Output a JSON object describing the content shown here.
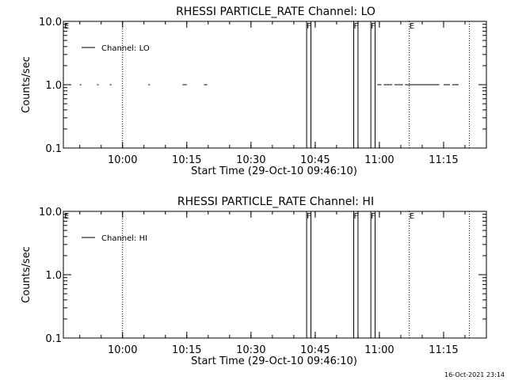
{
  "footer": {
    "timestamp": "16-Oct-2021 23:14"
  },
  "chart_data": [
    {
      "type": "line",
      "title": "RHESSI PARTICLE_RATE Channel: LO",
      "xlabel": "Start Time (29-Oct-10 09:46:10)",
      "ylabel": "Counts/sec",
      "y_scale": "log",
      "ylim": [
        0.1,
        10.0
      ],
      "xlim": [
        "09:46:10",
        "11:25:00"
      ],
      "x_ticks": [
        "10:00",
        "10:15",
        "10:30",
        "10:45",
        "11:00",
        "11:15"
      ],
      "y_ticks": [
        "0.1",
        "1.0",
        "10.0"
      ],
      "legend": {
        "position": "top-left",
        "entries": [
          "Channel: LO"
        ]
      },
      "flags": [
        {
          "label": "E",
          "time": "09:46:10",
          "style": "marker"
        },
        {
          "label": "",
          "time": "10:00",
          "style": "dotted"
        },
        {
          "label": "F",
          "time": "10:43",
          "style": "solid"
        },
        {
          "label": "F",
          "time": "10:54",
          "style": "solid"
        },
        {
          "label": "F",
          "time": "10:58",
          "style": "solid"
        },
        {
          "label": "E",
          "time": "11:07",
          "style": "dotted"
        },
        {
          "label": "",
          "time": "11:21",
          "style": "dotted"
        }
      ],
      "solid_lines": [
        "10:44",
        "10:55",
        "10:59"
      ],
      "series": [
        {
          "name": "Channel: LO",
          "segments": [
            {
              "start": "09:50",
              "end": "09:50.3",
              "value": 1.0
            },
            {
              "start": "09:54",
              "end": "09:54.4",
              "value": 1.0
            },
            {
              "start": "09:57",
              "end": "09:57.4",
              "value": 1.0
            },
            {
              "start": "10:06",
              "end": "10:06.4",
              "value": 1.0
            },
            {
              "start": "10:14",
              "end": "10:15",
              "value": 1.0
            },
            {
              "start": "10:19",
              "end": "10:19.8",
              "value": 1.0
            },
            {
              "start": "10:59.5",
              "end": "11:00.5",
              "value": 1.0
            },
            {
              "start": "11:01",
              "end": "11:03",
              "value": 1.0
            },
            {
              "start": "11:03.5",
              "end": "11:05.5",
              "value": 1.0
            },
            {
              "start": "11:06",
              "end": "11:14",
              "value": 1.0
            },
            {
              "start": "11:15",
              "end": "11:16.5",
              "value": 1.0
            },
            {
              "start": "11:17",
              "end": "11:18.5",
              "value": 1.0
            }
          ]
        }
      ]
    },
    {
      "type": "line",
      "title": "RHESSI PARTICLE_RATE Channel: HI",
      "xlabel": "Start Time (29-Oct-10 09:46:10)",
      "ylabel": "Counts/sec",
      "y_scale": "log",
      "ylim": [
        0.1,
        10.0
      ],
      "xlim": [
        "09:46:10",
        "11:25:00"
      ],
      "x_ticks": [
        "10:00",
        "10:15",
        "10:30",
        "10:45",
        "11:00",
        "11:15"
      ],
      "y_ticks": [
        "0.1",
        "1.0",
        "10.0"
      ],
      "legend": {
        "position": "top-left",
        "entries": [
          "Channel: HI"
        ]
      },
      "flags": [
        {
          "label": "E",
          "time": "09:46:10",
          "style": "marker"
        },
        {
          "label": "",
          "time": "10:00",
          "style": "dotted"
        },
        {
          "label": "F",
          "time": "10:43",
          "style": "solid"
        },
        {
          "label": "F",
          "time": "10:54",
          "style": "solid"
        },
        {
          "label": "F",
          "time": "10:58",
          "style": "solid"
        },
        {
          "label": "E",
          "time": "11:07",
          "style": "dotted"
        },
        {
          "label": "",
          "time": "11:21",
          "style": "dotted"
        }
      ],
      "solid_lines": [
        "10:44",
        "10:55",
        "10:59"
      ],
      "series": [
        {
          "name": "Channel: HI",
          "segments": []
        }
      ]
    }
  ]
}
